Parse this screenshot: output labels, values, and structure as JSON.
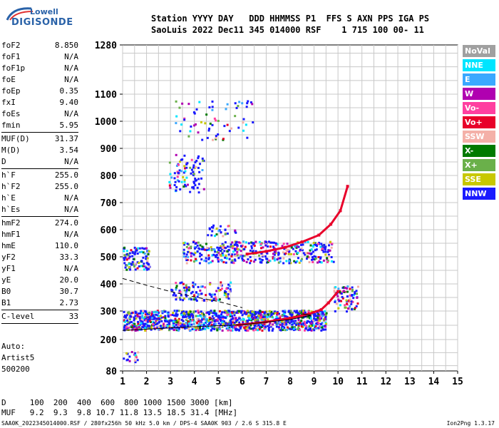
{
  "logo": {
    "line1": "Lowell",
    "line2": "DIGISONDE"
  },
  "header": {
    "row1": "Station YYYY DAY   DDD HHMMSS P1  FFS S AXN PPS IGA PS",
    "row2": "SaoLuis 2022 Dec11 345 014000 RSF    1 715 100 00- 11"
  },
  "params": [
    {
      "k": "foF2",
      "v": "8.850"
    },
    {
      "k": "foF1",
      "v": "N/A"
    },
    {
      "k": "foF1p",
      "v": "N/A"
    },
    {
      "k": "foE",
      "v": "N/A"
    },
    {
      "k": "foEp",
      "v": "0.35"
    },
    {
      "k": "fxI",
      "v": "9.40"
    },
    {
      "k": "foEs",
      "v": "N/A"
    },
    {
      "k": "fmin",
      "v": "5.95"
    },
    {
      "sep": true
    },
    {
      "k": "MUF(D)",
      "v": "31.37"
    },
    {
      "k": "M(D)",
      "v": "3.54"
    },
    {
      "k": "D",
      "v": "N/A"
    },
    {
      "sep": true
    },
    {
      "k": "h`F",
      "v": "255.0"
    },
    {
      "k": "h`F2",
      "v": "255.0"
    },
    {
      "k": "h`E",
      "v": "N/A"
    },
    {
      "k": "h`Es",
      "v": "N/A"
    },
    {
      "sep": true
    },
    {
      "k": "hmF2",
      "v": "274.0"
    },
    {
      "k": "hmF1",
      "v": "N/A"
    },
    {
      "k": "hmE",
      "v": "110.0"
    },
    {
      "k": "yF2",
      "v": "33.3"
    },
    {
      "k": "yF1",
      "v": "N/A"
    },
    {
      "k": "yE",
      "v": "20.0"
    },
    {
      "k": "B0",
      "v": "30.7"
    },
    {
      "k": "B1",
      "v": "2.73"
    },
    {
      "sep": true
    },
    {
      "k": "C-level",
      "v": "33"
    },
    {
      "sep": true
    }
  ],
  "auto": {
    "line1": "Auto:",
    "line2": "Artist5",
    "line3": "500200"
  },
  "legend": [
    {
      "label": "NoVal",
      "color": "#a0a0a0"
    },
    {
      "label": "NNE",
      "color": "#00e5ff"
    },
    {
      "label": "E",
      "color": "#3aa8ff"
    },
    {
      "label": "W",
      "color": "#b000b0"
    },
    {
      "label": "Vo-",
      "color": "#ff3fa0"
    },
    {
      "label": "Vo+",
      "color": "#e8002a"
    },
    {
      "label": "SSW",
      "color": "#f4b0a8"
    },
    {
      "label": "X-",
      "color": "#007a00"
    },
    {
      "label": "X+",
      "color": "#6ab04a"
    },
    {
      "label": "SSE",
      "color": "#c8c800"
    },
    {
      "label": "NNW",
      "color": "#1a1aff"
    }
  ],
  "dmuf": {
    "row1": "D     100  200  400  600  800 1000 1500 3000 [km]",
    "row2": "MUF   9.2  9.3  9.8 10.7 11.8 13.5 18.5 31.4 [MHz]"
  },
  "footer": "SAA0K_2022345014000.RSF / 280fx256h 50 kHz 5.0 km / DPS-4 SAA0K 903 / 2.6 S 315.8 E",
  "footer_right": "Ion2Png 1.3.17",
  "chart_data": {
    "type": "scatter",
    "xlabel": "",
    "ylabel": "",
    "xlim": [
      1,
      15
    ],
    "ylim": [
      80,
      1280
    ],
    "x_ticks": [
      1,
      2,
      3,
      4,
      5,
      6,
      7,
      8,
      9,
      10,
      11,
      12,
      13,
      14,
      15
    ],
    "y_ticks": [
      80,
      200,
      300,
      400,
      500,
      600,
      700,
      800,
      900,
      1000,
      1100,
      1280
    ],
    "grid": true,
    "traces": [
      {
        "name": "F2 trace",
        "color": "#e8002a",
        "points": [
          [
            6.2,
            510
          ],
          [
            7,
            520
          ],
          [
            7.8,
            535
          ],
          [
            8.5,
            555
          ],
          [
            9.2,
            580
          ],
          [
            9.7,
            620
          ],
          [
            10.1,
            670
          ],
          [
            10.4,
            760
          ]
        ]
      },
      {
        "name": "F2 ordinary",
        "color": "#e8002a",
        "points": [
          [
            5.9,
            252
          ],
          [
            7,
            262
          ],
          [
            8,
            275
          ],
          [
            8.8,
            290
          ],
          [
            9.3,
            305
          ],
          [
            9.6,
            330
          ],
          [
            10,
            372
          ]
        ]
      },
      {
        "name": "model profile",
        "color": "#000000",
        "points": [
          [
            1,
            232
          ],
          [
            4,
            245
          ],
          [
            6,
            252
          ],
          [
            8,
            270
          ],
          [
            8.9,
            285
          ],
          [
            8.5,
            290
          ]
        ]
      },
      {
        "name": "profile dashed",
        "color": "#000000",
        "points": [
          [
            1,
            420
          ],
          [
            2,
            395
          ],
          [
            3,
            372
          ],
          [
            4,
            352
          ],
          [
            5,
            335
          ],
          [
            6,
            312
          ]
        ]
      }
    ],
    "clouds": [
      {
        "x": [
          1,
          9.5
        ],
        "y": [
          235,
          305
        ],
        "density": 0.9
      },
      {
        "x": [
          3.5,
          9.8
        ],
        "y": [
          480,
          560
        ],
        "density": 0.4
      },
      {
        "x": [
          1,
          2.1
        ],
        "y": [
          455,
          540
        ],
        "density": 0.5
      },
      {
        "x": [
          3,
          5.5
        ],
        "y": [
          340,
          410
        ],
        "density": 0.3
      },
      {
        "x": [
          2.9,
          4.4
        ],
        "y": [
          740,
          880
        ],
        "density": 0.2
      },
      {
        "x": [
          3,
          6.5
        ],
        "y": [
          930,
          1080
        ],
        "density": 0.06
      },
      {
        "x": [
          4.5,
          5.8
        ],
        "y": [
          580,
          620
        ],
        "density": 0.25
      },
      {
        "x": [
          1,
          1.6
        ],
        "y": [
          160,
          115
        ],
        "density": 0.3
      },
      {
        "x": [
          9.8,
          10.8
        ],
        "y": [
          300,
          395
        ],
        "density": 0.4
      }
    ]
  }
}
